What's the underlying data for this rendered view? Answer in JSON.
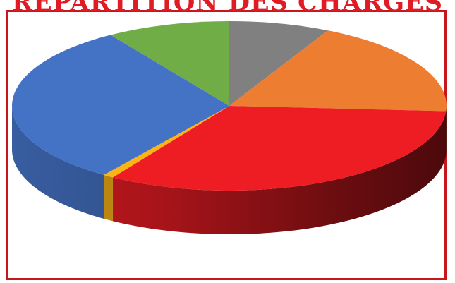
{
  "chart_data": {
    "type": "pie",
    "style": "3d",
    "title": "RÉPARTITION DES CHARGES",
    "series": [
      {
        "values": [
          7.5,
          18.5,
          33.0,
          0.8,
          31.0,
          9.2
        ],
        "colors": [
          "#808080",
          "#ed7d31",
          "#ee1d24",
          "#fbb416",
          "#4472c4",
          "#70ad47"
        ]
      }
    ],
    "legend": false,
    "grid": false
  }
}
